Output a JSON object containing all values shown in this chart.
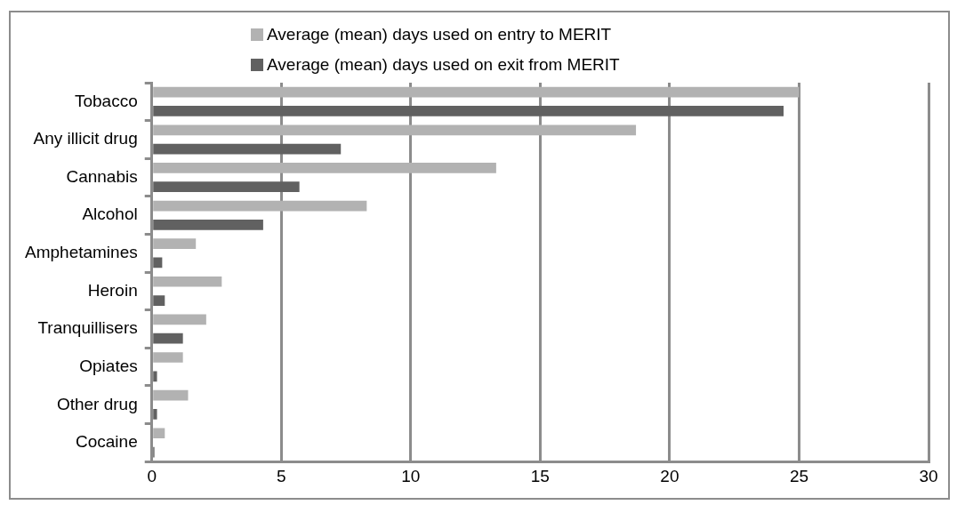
{
  "chart_data": {
    "type": "bar",
    "orientation": "horizontal",
    "categories": [
      "Tobacco",
      "Any illicit drug",
      "Cannabis",
      "Alcohol",
      "Amphetamines",
      "Heroin",
      "Tranquillisers",
      "Opiates",
      "Other drug",
      "Cocaine"
    ],
    "series": [
      {
        "name": "Average (mean) days used on entry to MERIT",
        "color": "#b2b2b2",
        "values": [
          25.0,
          18.7,
          13.3,
          8.3,
          1.7,
          2.7,
          2.1,
          1.2,
          1.4,
          0.5
        ]
      },
      {
        "name": "Average (mean) days used on exit from MERIT",
        "color": "#616161",
        "values": [
          24.4,
          7.3,
          5.7,
          4.3,
          0.4,
          0.5,
          1.2,
          0.2,
          0.2,
          0.1
        ]
      }
    ],
    "xlim": [
      0,
      30
    ],
    "xticks": [
      0,
      5,
      10,
      15,
      20,
      25,
      30
    ],
    "grid": "x",
    "legend": "top"
  }
}
